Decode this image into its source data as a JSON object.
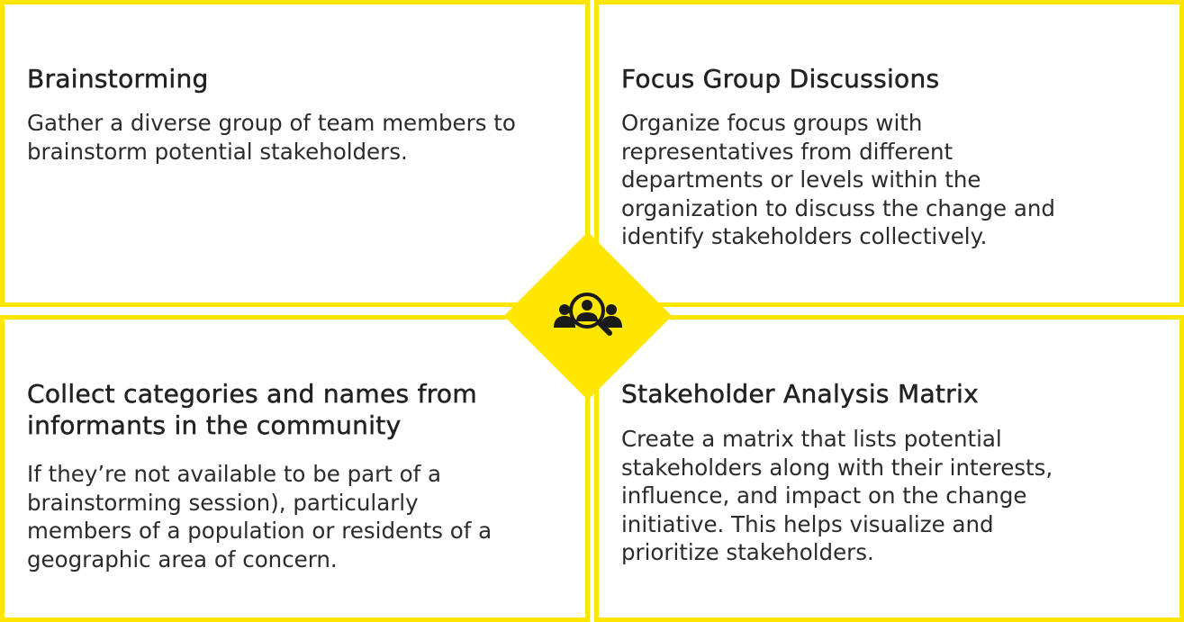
{
  "cards": [
    {
      "title": "Brainstorming",
      "lines": [
        "Gather a diverse group of team members to",
        "brainstorm potential stakeholders."
      ]
    },
    {
      "title": "Focus Group Discussions",
      "lines": [
        "Organize focus groups with",
        "representatives from different",
        "departments or levels within the",
        "organization to discuss the change and",
        "identify stakeholders collectively."
      ]
    },
    {
      "title_lines": [
        "Collect categories and names from",
        "informants in the community"
      ],
      "lines": [
        "If they’re not available to be part of a",
        "brainstorming session), particularly",
        "members of a population or residents of a",
        "geographic area of concern."
      ]
    },
    {
      "title": "Stakeholder Analysis Matrix",
      "lines": [
        "Create a matrix that lists potential",
        "stakeholders along with their interests,",
        "influence, and impact on the change",
        "initiative. This helps visualize and",
        "prioritize stakeholders."
      ]
    }
  ],
  "center_icon": "stakeholder-search-icon",
  "colors": {
    "accent": "#ffe600",
    "text": "#222222",
    "icon": "#1a1a1a"
  }
}
